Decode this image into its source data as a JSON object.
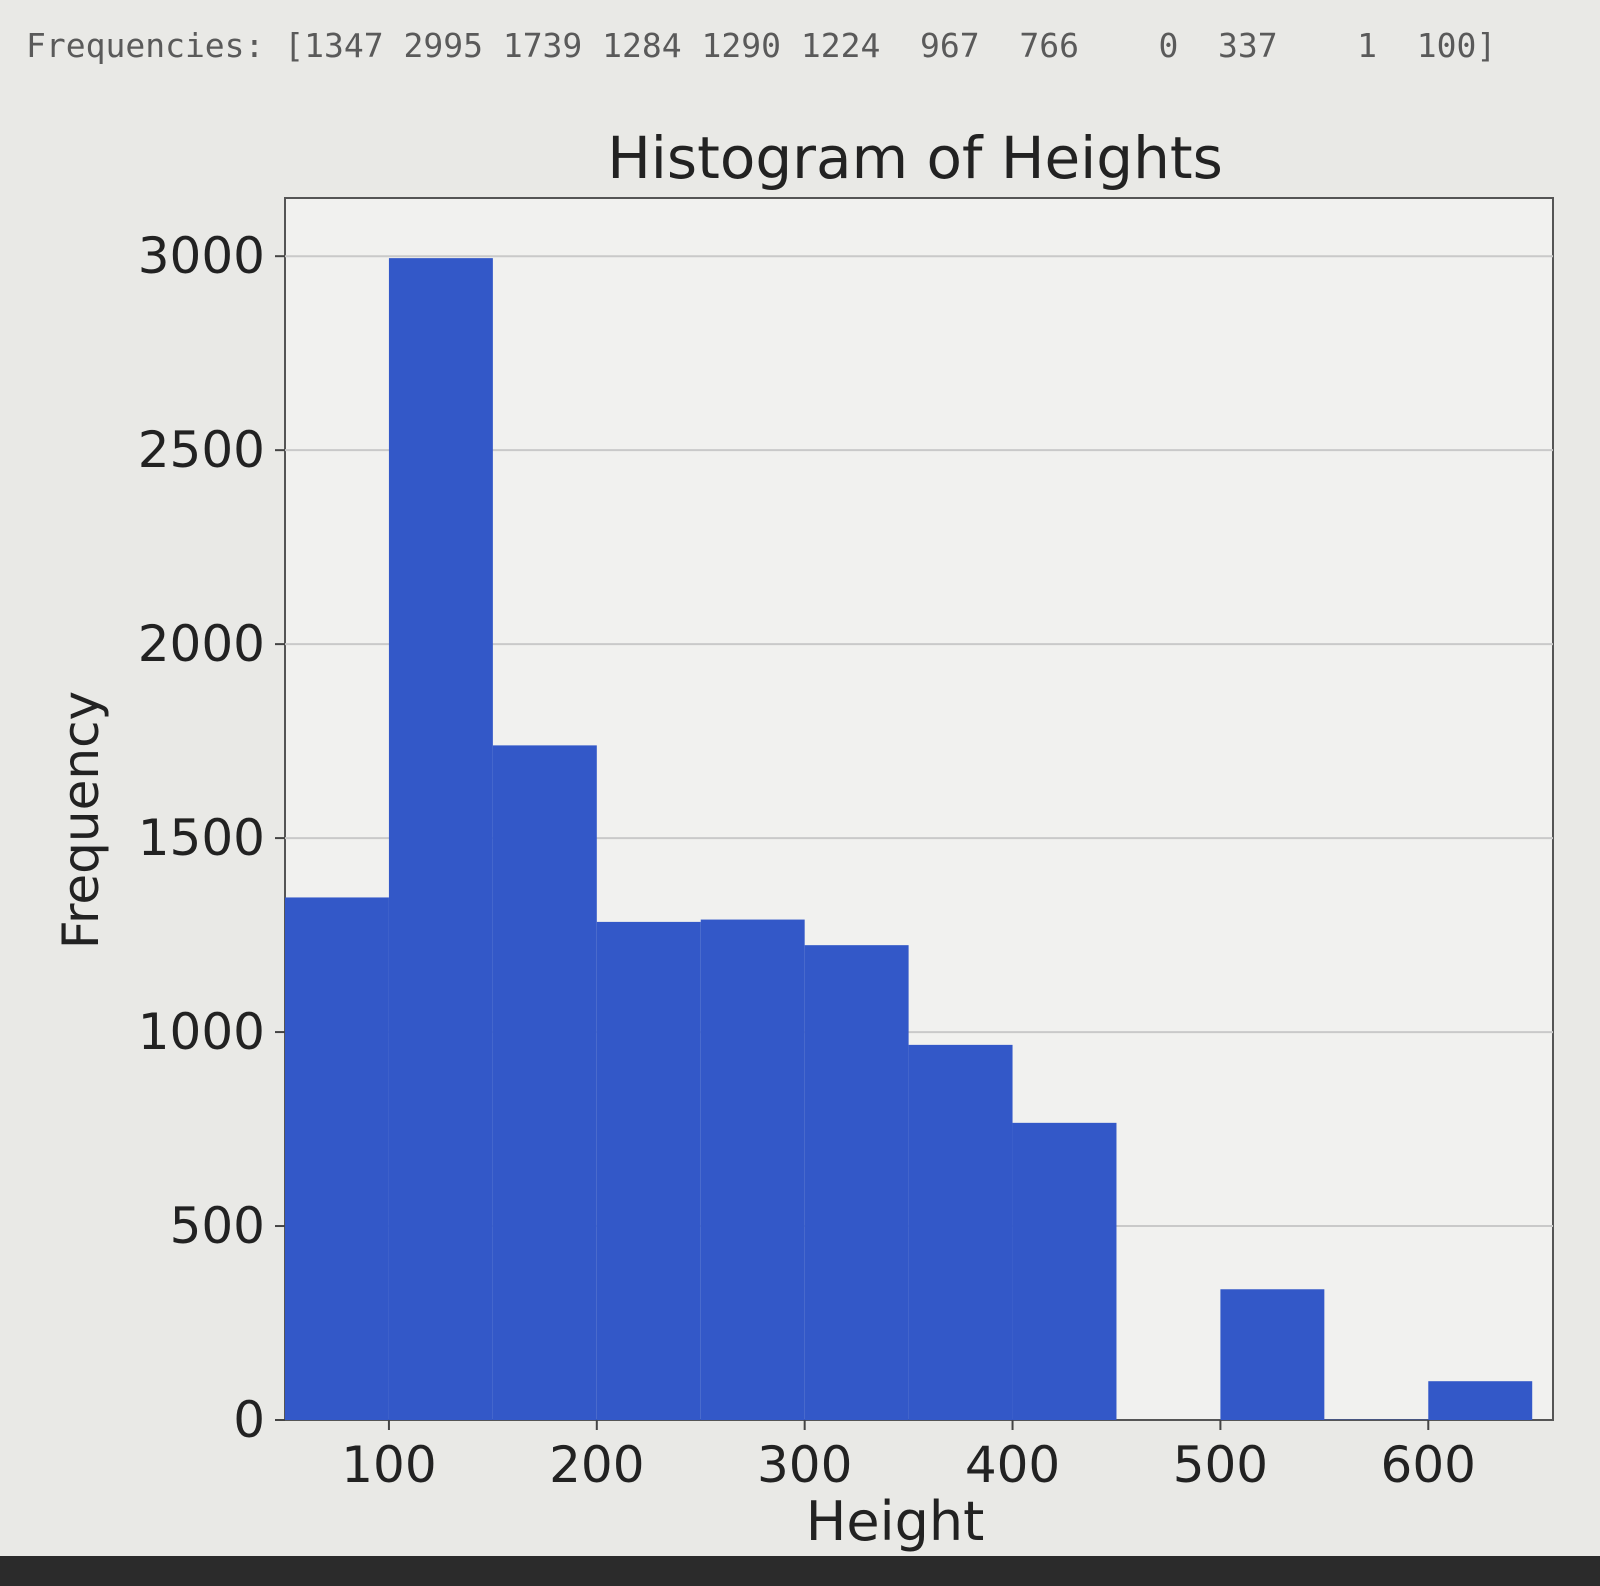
{
  "output": {
    "frequencies_line": "Frequencies: [1347 2995 1739 1284 1290 1224  967  766    0  337    1  100]"
  },
  "chart_data": {
    "type": "bar",
    "title": "Histogram of Heights",
    "xlabel": "Height",
    "ylabel": "Frequency",
    "bins": [
      {
        "start": 50,
        "end": 100,
        "value": 1347
      },
      {
        "start": 100,
        "end": 150,
        "value": 2995
      },
      {
        "start": 150,
        "end": 200,
        "value": 1739
      },
      {
        "start": 200,
        "end": 250,
        "value": 1284
      },
      {
        "start": 250,
        "end": 300,
        "value": 1290
      },
      {
        "start": 300,
        "end": 350,
        "value": 1224
      },
      {
        "start": 350,
        "end": 400,
        "value": 967
      },
      {
        "start": 400,
        "end": 450,
        "value": 766
      },
      {
        "start": 450,
        "end": 500,
        "value": 0
      },
      {
        "start": 500,
        "end": 550,
        "value": 337
      },
      {
        "start": 550,
        "end": 600,
        "value": 1
      },
      {
        "start": 600,
        "end": 650,
        "value": 100
      }
    ],
    "xlim": [
      50,
      660
    ],
    "ylim": [
      0,
      3150
    ],
    "xticks": [
      100,
      200,
      300,
      400,
      500,
      600
    ],
    "yticks": [
      0,
      500,
      1000,
      1500,
      2000,
      2500,
      3000
    ],
    "grid": "y",
    "bar_color": "#3358c8",
    "grid_color": "#c9c9c9"
  }
}
